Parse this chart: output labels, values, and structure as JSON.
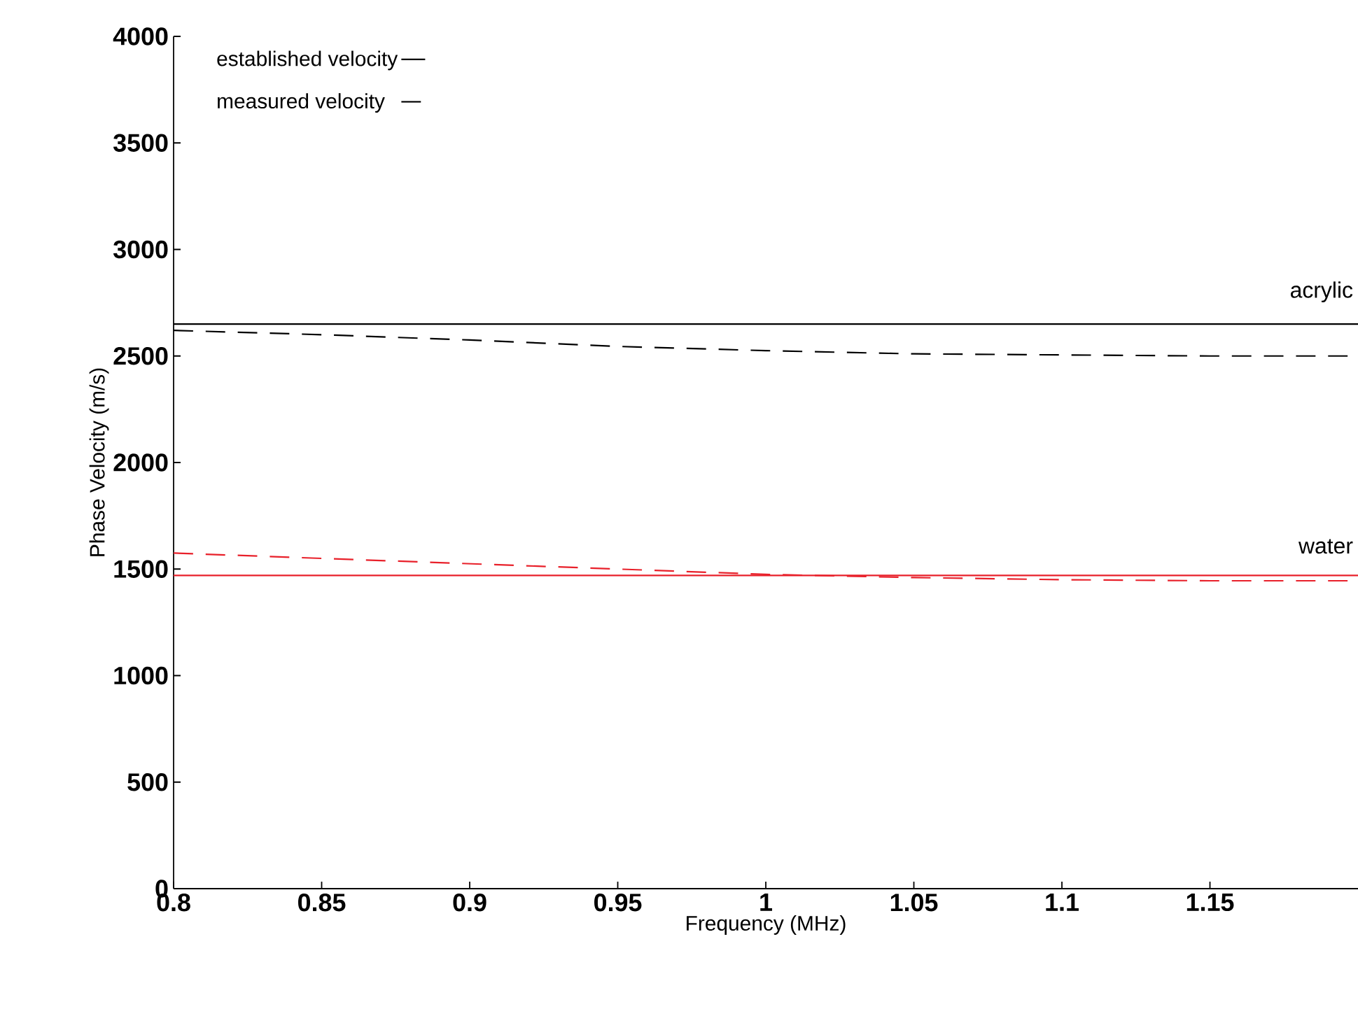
{
  "chart_data": {
    "type": "line",
    "xlabel": "Frequency (MHz)",
    "ylabel": "Phase Velocity (m/s)",
    "xlim": [
      0.8,
      1.2
    ],
    "xticks": [
      0.8,
      0.85,
      0.9,
      0.95,
      1,
      1.05,
      1.1,
      1.15
    ],
    "ylim": [
      0,
      4000
    ],
    "yticks": [
      0,
      500,
      1000,
      1500,
      2000,
      2500,
      3000,
      3500,
      4000
    ],
    "grid": false,
    "legend": "top left",
    "marker": "none",
    "series": [
      {
        "name": "established velocity",
        "color": "#000000",
        "line_style": "solid",
        "x": [
          0.8,
          1.2
        ],
        "values": [
          2650,
          2650
        ]
      },
      {
        "name": "measured velocity",
        "color": "#000000",
        "line_style": "dashed",
        "x": [
          0.8,
          0.85,
          0.9,
          0.95,
          1.0,
          1.05,
          1.1,
          1.15,
          1.2
        ],
        "values": [
          2620,
          2600,
          2575,
          2545,
          2525,
          2510,
          2505,
          2500,
          2500
        ]
      },
      {
        "color": "#e8202a",
        "line_style": "solid",
        "x": [
          0.8,
          1.2
        ],
        "values": [
          1470,
          1470
        ]
      },
      {
        "color": "#e8202a",
        "line_style": "dashed",
        "x": [
          0.8,
          0.85,
          0.9,
          0.95,
          1.0,
          1.05,
          1.1,
          1.15,
          1.2
        ],
        "values": [
          1575,
          1550,
          1525,
          1500,
          1475,
          1460,
          1450,
          1445,
          1445
        ]
      }
    ],
    "annotations": [
      {
        "text": "acrylic",
        "x": 1.2,
        "y": 2650
      },
      {
        "text": "water",
        "x": 1.2,
        "y": 1470
      }
    ]
  }
}
